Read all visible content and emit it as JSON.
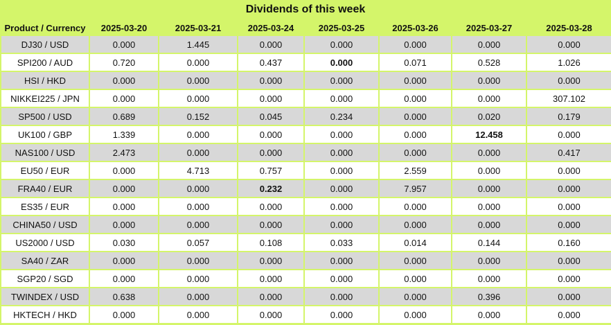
{
  "title": "Dividends of this week",
  "columns": [
    "Product / Currency",
    "2025-03-20",
    "2025-03-21",
    "2025-03-24",
    "2025-03-25",
    "2025-03-26",
    "2025-03-27",
    "2025-03-28"
  ],
  "rows": [
    {
      "product": "DJ30 / USD",
      "values": [
        "0.000",
        "1.445",
        "0.000",
        "0.000",
        "0.000",
        "0.000",
        "0.000"
      ],
      "bold": []
    },
    {
      "product": "SPI200 / AUD",
      "values": [
        "0.720",
        "0.000",
        "0.437",
        "0.000",
        "0.071",
        "0.528",
        "1.026"
      ],
      "bold": [
        3
      ]
    },
    {
      "product": "HSI / HKD",
      "values": [
        "0.000",
        "0.000",
        "0.000",
        "0.000",
        "0.000",
        "0.000",
        "0.000"
      ],
      "bold": []
    },
    {
      "product": "NIKKEI225 / JPN",
      "values": [
        "0.000",
        "0.000",
        "0.000",
        "0.000",
        "0.000",
        "0.000",
        "307.102"
      ],
      "bold": []
    },
    {
      "product": "SP500 / USD",
      "values": [
        "0.689",
        "0.152",
        "0.045",
        "0.234",
        "0.000",
        "0.020",
        "0.179"
      ],
      "bold": []
    },
    {
      "product": "UK100 / GBP",
      "values": [
        "1.339",
        "0.000",
        "0.000",
        "0.000",
        "0.000",
        "12.458",
        "0.000"
      ],
      "bold": [
        5
      ]
    },
    {
      "product": "NAS100 / USD",
      "values": [
        "2.473",
        "0.000",
        "0.000",
        "0.000",
        "0.000",
        "0.000",
        "0.417"
      ],
      "bold": []
    },
    {
      "product": "EU50 / EUR",
      "values": [
        "0.000",
        "4.713",
        "0.757",
        "0.000",
        "2.559",
        "0.000",
        "0.000"
      ],
      "bold": []
    },
    {
      "product": "FRA40 / EUR",
      "values": [
        "0.000",
        "0.000",
        "0.232",
        "0.000",
        "7.957",
        "0.000",
        "0.000"
      ],
      "bold": [
        2
      ]
    },
    {
      "product": "ES35 / EUR",
      "values": [
        "0.000",
        "0.000",
        "0.000",
        "0.000",
        "0.000",
        "0.000",
        "0.000"
      ],
      "bold": []
    },
    {
      "product": "CHINA50 / USD",
      "values": [
        "0.000",
        "0.000",
        "0.000",
        "0.000",
        "0.000",
        "0.000",
        "0.000"
      ],
      "bold": []
    },
    {
      "product": "US2000 / USD",
      "values": [
        "0.030",
        "0.057",
        "0.108",
        "0.033",
        "0.014",
        "0.144",
        "0.160"
      ],
      "bold": []
    },
    {
      "product": "SA40 / ZAR",
      "values": [
        "0.000",
        "0.000",
        "0.000",
        "0.000",
        "0.000",
        "0.000",
        "0.000"
      ],
      "bold": []
    },
    {
      "product": "SGP20 / SGD",
      "values": [
        "0.000",
        "0.000",
        "0.000",
        "0.000",
        "0.000",
        "0.000",
        "0.000"
      ],
      "bold": []
    },
    {
      "product": "TWINDEX / USD",
      "values": [
        "0.638",
        "0.000",
        "0.000",
        "0.000",
        "0.000",
        "0.396",
        "0.000"
      ],
      "bold": []
    },
    {
      "product": "HKTECH / HKD",
      "values": [
        "0.000",
        "0.000",
        "0.000",
        "0.000",
        "0.000",
        "0.000",
        "0.000"
      ],
      "bold": []
    }
  ],
  "colors": {
    "header_bg": "#d4f56a",
    "row_alt": "#d8d8d8",
    "row_plain": "#ffffff"
  }
}
